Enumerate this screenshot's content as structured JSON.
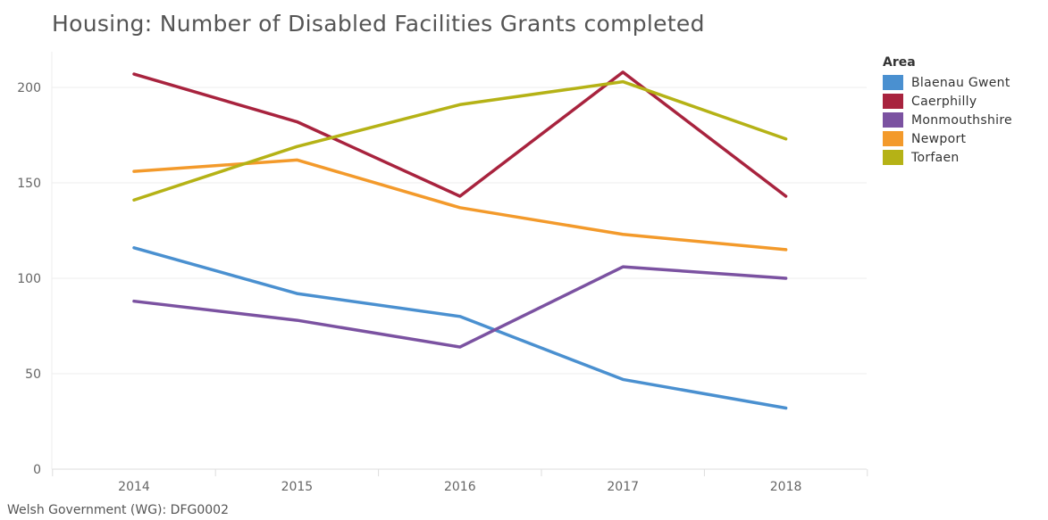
{
  "title": "Housing: Number of Disabled Facilities Grants completed",
  "source": "Welsh Government (WG): DFG0002",
  "legend": {
    "title": "Area"
  },
  "chart_data": {
    "type": "line",
    "title": "Housing: Number of Disabled Facilities Grants completed",
    "xlabel": "",
    "ylabel": "",
    "x": [
      "2014",
      "2015",
      "2016",
      "2017",
      "2018"
    ],
    "ylim": [
      0,
      220
    ],
    "yticks": [
      0,
      50,
      100,
      150,
      200
    ],
    "grid": true,
    "legend_position": "right",
    "series": [
      {
        "name": "Blaenau Gwent",
        "color": "#4a90d0",
        "values": [
          116,
          92,
          80,
          47,
          32
        ]
      },
      {
        "name": "Caerphilly",
        "color": "#a8233e",
        "values": [
          207,
          182,
          143,
          208,
          143
        ]
      },
      {
        "name": "Monmouthshire",
        "color": "#7b52a1",
        "values": [
          88,
          78,
          64,
          106,
          100
        ]
      },
      {
        "name": "Newport",
        "color": "#f39a2b",
        "values": [
          156,
          162,
          137,
          123,
          115
        ]
      },
      {
        "name": "Torfaen",
        "color": "#b5b216",
        "values": [
          141,
          169,
          191,
          203,
          173
        ]
      }
    ]
  }
}
